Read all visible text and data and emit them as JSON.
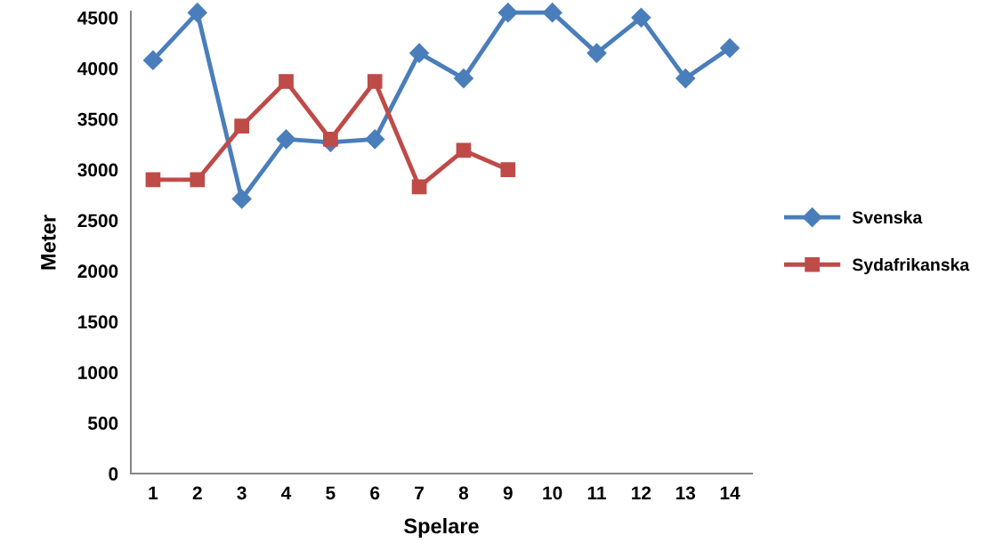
{
  "chart_data": {
    "type": "line",
    "xlabel": "Spelare",
    "ylabel": "Meter",
    "categories": [
      "1",
      "2",
      "3",
      "4",
      "5",
      "6",
      "7",
      "8",
      "9",
      "10",
      "11",
      "12",
      "13",
      "14"
    ],
    "series": [
      {
        "name": "Svenska",
        "color": "#4a7ebb",
        "marker": "diamond",
        "values": [
          4080,
          4550,
          2710,
          3300,
          3270,
          3300,
          4150,
          3900,
          4550,
          4550,
          4150,
          4500,
          3900,
          4200
        ]
      },
      {
        "name": "Sydafrikanska",
        "color": "#be4b48",
        "marker": "square",
        "values": [
          2900,
          2900,
          3430,
          3870,
          3300,
          3870,
          2830,
          3190,
          3000,
          null,
          null,
          null,
          null,
          null
        ]
      }
    ],
    "ylim": [
      0,
      4560
    ],
    "yticks": [
      0,
      500,
      1000,
      1500,
      2000,
      2500,
      3000,
      3500,
      4000,
      4500
    ],
    "grid": false,
    "legend": "right",
    "line_style": "solid"
  }
}
